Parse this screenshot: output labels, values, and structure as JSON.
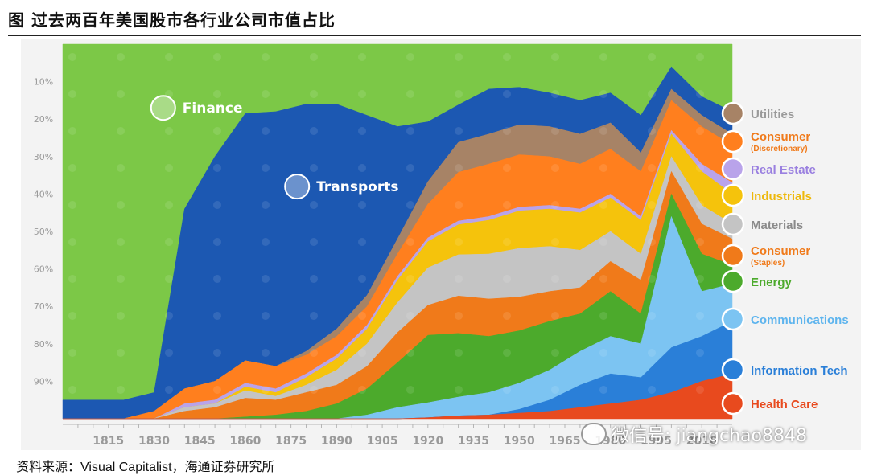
{
  "header": {
    "title": "图 过去两百年美国股市各行业公司市值占比"
  },
  "footer": {
    "source": "资料来源：Visual Capitalist，海通证券研究所"
  },
  "watermark": {
    "text": "微信号: jiangchao8848"
  },
  "chart_data": {
    "type": "area",
    "title": "",
    "xlabel": "",
    "ylabel": "",
    "stacking": "100% stacked",
    "ylim": [
      0,
      100
    ],
    "yticks": [
      "10%",
      "20%",
      "30%",
      "40%",
      "50%",
      "60%",
      "70%",
      "80%",
      "90%"
    ],
    "xticks": [
      "1815",
      "1830",
      "1845",
      "1860",
      "1875",
      "1890",
      "1905",
      "1920",
      "1935",
      "1950",
      "1965",
      "1980",
      "1995",
      "2010"
    ],
    "x": [
      1800,
      1810,
      1820,
      1830,
      1840,
      1850,
      1860,
      1870,
      1880,
      1890,
      1900,
      1910,
      1920,
      1930,
      1940,
      1950,
      1960,
      1970,
      1980,
      1990,
      2000,
      2010,
      2020
    ],
    "series": [
      {
        "name": "Health Care",
        "color": "#e84a1e",
        "values": [
          0,
          0,
          0,
          0,
          0,
          0,
          0,
          0,
          0,
          0,
          0,
          0,
          0.3,
          0.8,
          1,
          1.5,
          2,
          3,
          4,
          5,
          7,
          10,
          12
        ]
      },
      {
        "name": "Information Tech",
        "color": "#2a7fd8",
        "values": [
          0,
          0,
          0,
          0,
          0,
          0,
          0,
          0,
          0,
          0,
          0,
          0,
          0,
          0,
          0,
          1,
          3,
          6,
          8,
          6,
          12,
          12,
          14
        ]
      },
      {
        "name": "Communications",
        "color": "#7cc4f2",
        "values": [
          0,
          0,
          0,
          0,
          0,
          0,
          0,
          0,
          0,
          0,
          1,
          3,
          4,
          5,
          6,
          7,
          8,
          9,
          10,
          9,
          35,
          12,
          10
        ]
      },
      {
        "name": "Energy",
        "color": "#4caa2c",
        "values": [
          0,
          0,
          0,
          0,
          0,
          0,
          0.5,
          1,
          2,
          4,
          7,
          12,
          18,
          17,
          15,
          14,
          13,
          10,
          12,
          8,
          6,
          10,
          5
        ]
      },
      {
        "name": "Consumer (Staples)",
        "color": "#f07a1a",
        "values": [
          0,
          0,
          0,
          0,
          2,
          3,
          5,
          4,
          5,
          5,
          6,
          8,
          8,
          10,
          10,
          9,
          8,
          7,
          8,
          9,
          6,
          8,
          7
        ]
      },
      {
        "name": "Materials",
        "color": "#c4c4c4",
        "values": [
          0,
          0,
          0,
          0,
          1,
          1,
          2,
          1,
          2,
          4,
          6,
          8,
          10,
          11,
          12,
          13,
          12,
          10,
          8,
          7,
          4,
          5,
          4
        ]
      },
      {
        "name": "Industrials",
        "color": "#f5c30c",
        "values": [
          0,
          0,
          0,
          0,
          0,
          0,
          1,
          1,
          2,
          3,
          4,
          6,
          7,
          8,
          9,
          10,
          10,
          10,
          9,
          9,
          6,
          9,
          8
        ]
      },
      {
        "name": "Real Estate",
        "color": "#b9a3ea",
        "values": [
          0,
          0,
          0,
          0,
          1,
          1,
          1,
          1,
          1,
          1,
          1,
          1,
          1,
          1,
          1,
          1,
          1,
          1,
          1,
          1,
          1,
          2,
          3
        ]
      },
      {
        "name": "Consumer (Discretionary)",
        "color": "#ff7f1e",
        "values": [
          0,
          0,
          0,
          2,
          4,
          5,
          6,
          6,
          5,
          5,
          5,
          6,
          9,
          13,
          14,
          14,
          13,
          12,
          12,
          12,
          8,
          10,
          10
        ]
      },
      {
        "name": "Utilities",
        "color": "#a78366",
        "values": [
          0,
          0,
          0,
          0,
          0,
          0,
          0,
          0,
          1,
          2,
          3,
          4,
          6,
          8,
          8,
          8,
          8,
          8,
          7,
          5,
          3,
          3,
          3
        ]
      },
      {
        "name": "Transports",
        "color": "#1c58b2",
        "values": [
          5,
          5,
          5,
          5,
          48,
          60,
          66,
          68,
          66,
          60,
          48,
          30,
          16,
          10,
          12,
          10,
          9,
          9,
          8,
          10,
          6,
          5,
          6
        ]
      },
      {
        "name": "Finance",
        "color": "#7cc847",
        "values": [
          95,
          95,
          95,
          93,
          44,
          30,
          18.5,
          18,
          16,
          16,
          19,
          22,
          20.7,
          16.2,
          12,
          11.5,
          13,
          15,
          13,
          19,
          6,
          14,
          18
        ]
      }
    ],
    "series_labels": {
      "Finance": "Finance",
      "Transports": "Transports"
    },
    "legend_position": "right",
    "legend": [
      {
        "series": "Utilities",
        "lines": [
          "Utilities"
        ],
        "color": "#9a9a9a",
        "icon": "utilities-icon"
      },
      {
        "series": "Consumer (Discretionary)",
        "lines": [
          "Consumer",
          "(Discretionary)"
        ],
        "color": "#f07a1a",
        "icon": "shopping-bag-icon"
      },
      {
        "series": "Real Estate",
        "lines": [
          "Real Estate"
        ],
        "color": "#9a80e0",
        "icon": "building-icon"
      },
      {
        "series": "Industrials",
        "lines": [
          "Industrials"
        ],
        "color": "#eeb80a",
        "icon": "factory-icon"
      },
      {
        "series": "Materials",
        "lines": [
          "Materials"
        ],
        "color": "#8a8a8a",
        "icon": "diamond-icon"
      },
      {
        "series": "Consumer (Staples)",
        "lines": [
          "Consumer",
          "(Staples)"
        ],
        "color": "#f07a1a",
        "icon": "cart-icon"
      },
      {
        "series": "Energy",
        "lines": [
          "Energy"
        ],
        "color": "#4caa2c",
        "icon": "bolt-icon"
      },
      {
        "series": "Communications",
        "lines": [
          "Communications"
        ],
        "color": "#5db4ee",
        "icon": "satellite-icon"
      },
      {
        "series": "Information Tech",
        "lines": [
          "Information Tech"
        ],
        "color": "#2a7fd8",
        "icon": "chip-icon"
      },
      {
        "series": "Health Care",
        "lines": [
          "Health Care"
        ],
        "color": "#e84a1e",
        "icon": "medical-cross-icon"
      }
    ]
  }
}
